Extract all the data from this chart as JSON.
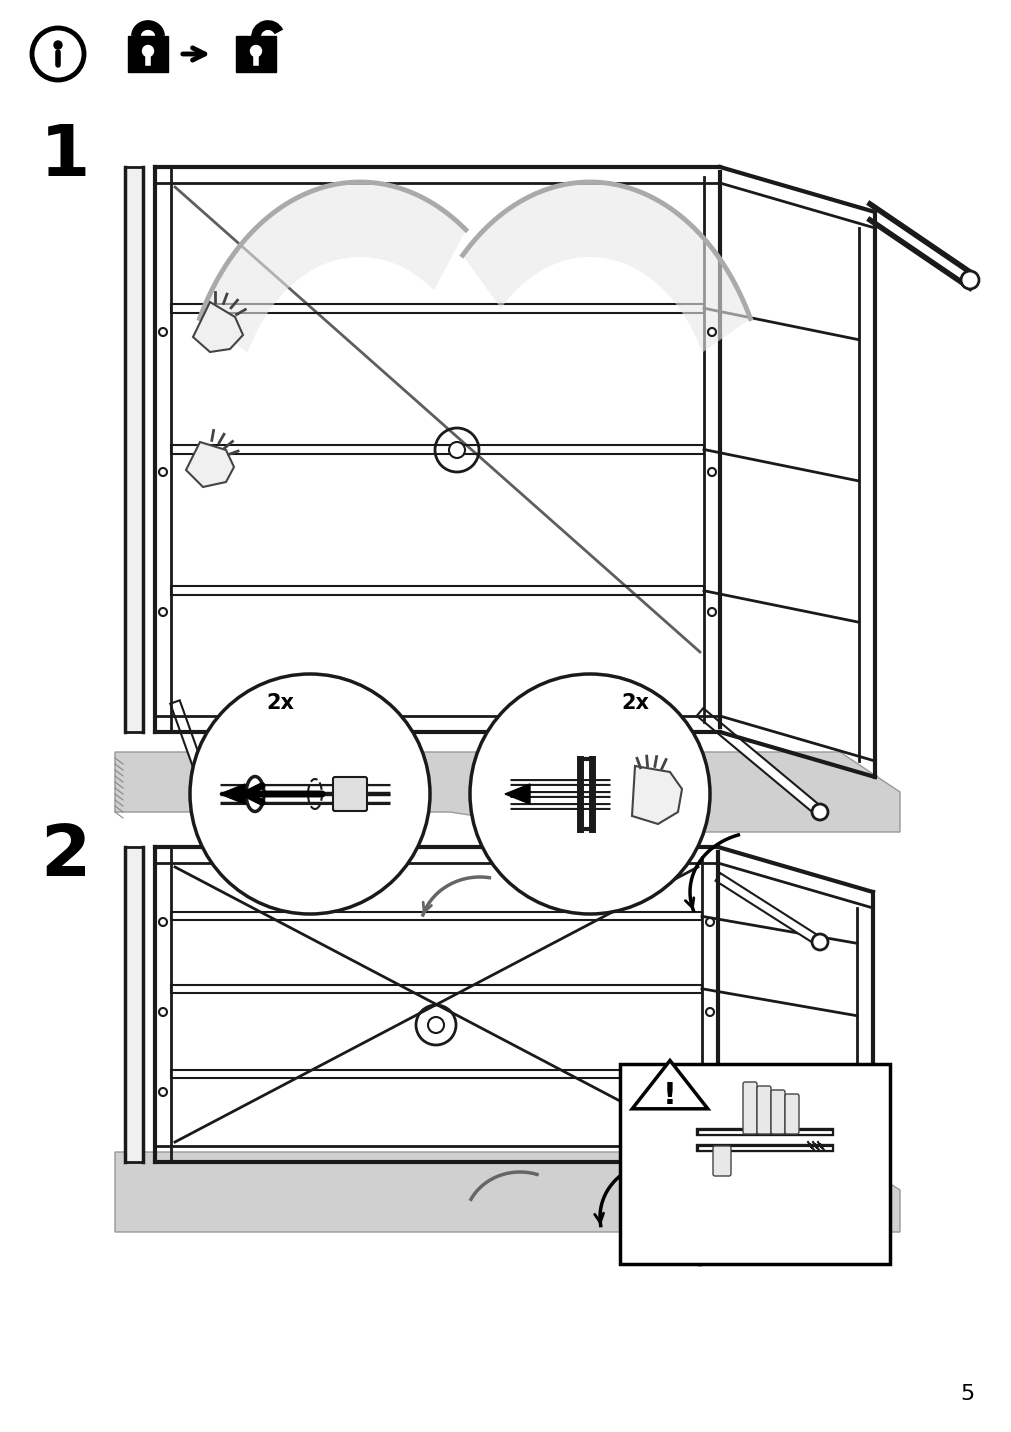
{
  "bg": "#ffffff",
  "lc": "#1a1a1a",
  "gray_floor": "#cccccc",
  "gray_mid": "#aaaaaa",
  "page_num": "5"
}
